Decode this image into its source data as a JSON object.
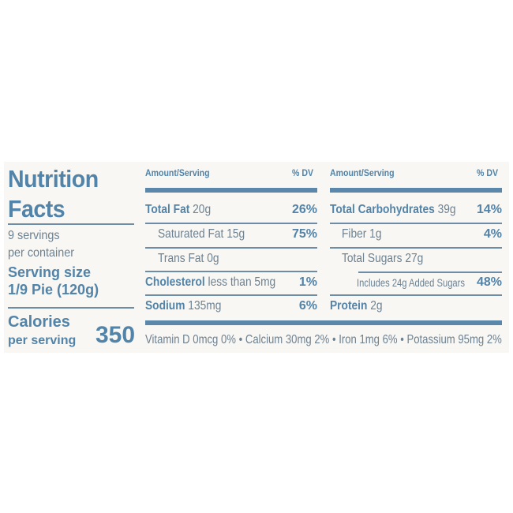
{
  "title": {
    "line1": "Nutrition",
    "line2": "Facts"
  },
  "servings": {
    "line1": "9 servings",
    "line2": "per container",
    "size_label": "Serving size",
    "size_value": "1/9 Pie (120g)"
  },
  "calories": {
    "label": "Calories",
    "sub": "per serving",
    "value": "350"
  },
  "header": {
    "amount": "Amount/Serving",
    "dv": "% DV"
  },
  "left_rows": [
    {
      "name": "Total Fat",
      "amount": "20g",
      "dv": "26%"
    },
    {
      "name": "Saturated Fat",
      "amount": "15g",
      "dv": "75%"
    },
    {
      "name": "Trans Fat",
      "amount": "0g",
      "dv": ""
    },
    {
      "name": "Cholesterol",
      "amount": "less than 5mg",
      "dv": "1%"
    },
    {
      "name": "Sodium",
      "amount": "135mg",
      "dv": "6%"
    }
  ],
  "right_rows": [
    {
      "name": "Total Carbohydrates",
      "amount": "39g",
      "dv": "14%"
    },
    {
      "name": "Fiber",
      "amount": "1g",
      "dv": "4%"
    },
    {
      "name": "Total Sugars",
      "amount": "27g",
      "dv": ""
    },
    {
      "name": "Includes 24g Added Sugars",
      "amount": "",
      "dv": "48%"
    },
    {
      "name": "Protein",
      "amount": "2g",
      "dv": ""
    }
  ],
  "footer": "Vitamin D 0mcg 0% • Calcium 30mg 2% • Iron 1mg 6% • Potassium 95mg 2%",
  "colors": {
    "accent": "#5283a8",
    "text": "#6d8191",
    "background": "#f8f7f3"
  }
}
